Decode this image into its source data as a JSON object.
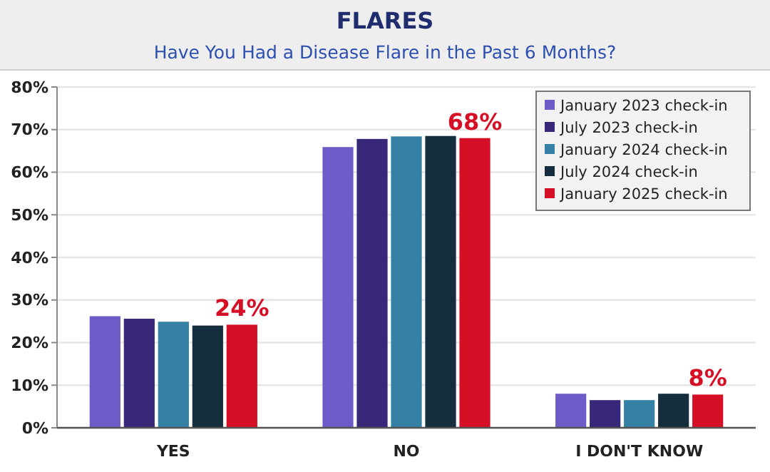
{
  "chart_data": {
    "type": "bar",
    "title": "FLARES",
    "subtitle": "Have You Had a Disease Flare in the Past 6 Months?",
    "categories": [
      "YES",
      "NO",
      "I DON'T KNOW"
    ],
    "series": [
      {
        "name": "January 2023 check-in",
        "color": "#6f5bc8",
        "values": [
          26.2,
          65.9,
          8.0
        ]
      },
      {
        "name": "July 2023 check-in",
        "color": "#392879",
        "values": [
          25.6,
          67.8,
          6.5
        ]
      },
      {
        "name": "January 2024 check-in",
        "color": "#3580a5",
        "values": [
          24.9,
          68.4,
          6.5
        ]
      },
      {
        "name": "July 2024 check-in",
        "color": "#152e3e",
        "values": [
          24.0,
          68.5,
          8.0
        ]
      },
      {
        "name": "January 2025 check-in",
        "color": "#d50f25",
        "values": [
          24.2,
          68.0,
          7.8
        ],
        "value_labels": [
          "24%",
          "68%",
          "8%"
        ]
      }
    ],
    "ylim": [
      0,
      80
    ],
    "yticks": [
      {
        "value": 0,
        "label": "0%"
      },
      {
        "value": 10,
        "label": "10%"
      },
      {
        "value": 20,
        "label": "20%"
      },
      {
        "value": 30,
        "label": "30%"
      },
      {
        "value": 40,
        "label": "40%"
      },
      {
        "value": 50,
        "label": "50%"
      },
      {
        "value": 60,
        "label": "60%"
      },
      {
        "value": 70,
        "label": "70%"
      },
      {
        "value": 80,
        "label": "80%"
      }
    ],
    "grid": "y",
    "legend": "top right"
  }
}
